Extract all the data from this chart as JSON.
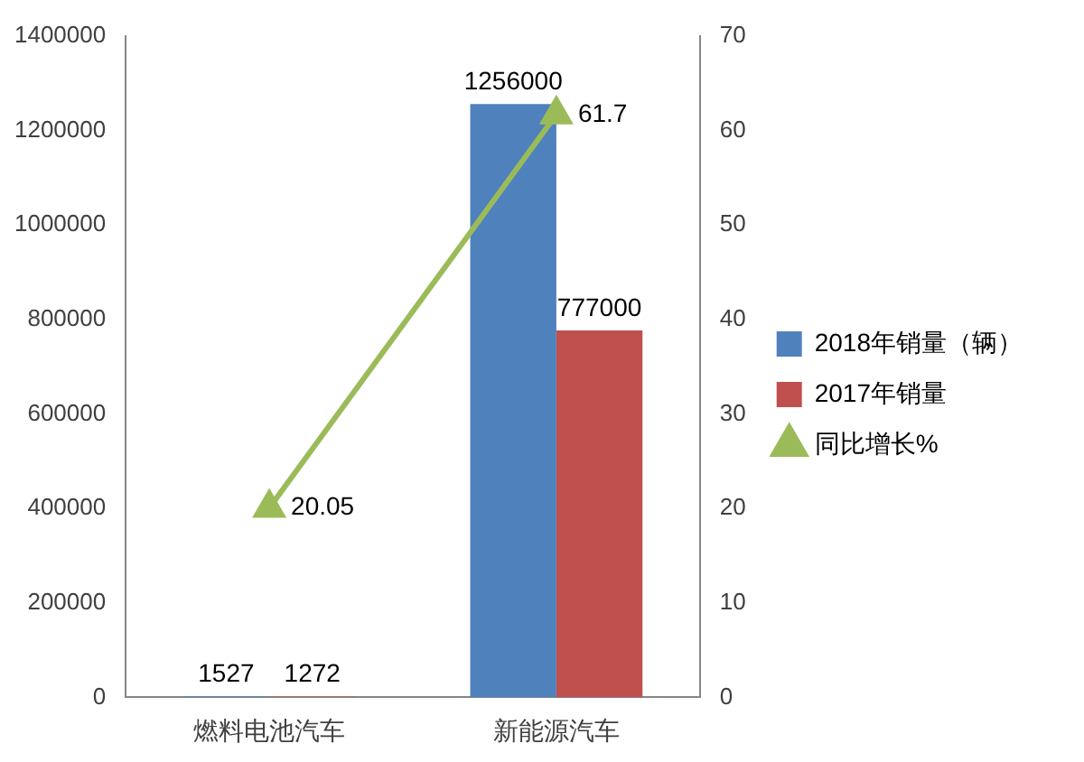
{
  "chart_data": {
    "type": "bar",
    "categories": [
      "燃料电池汽车",
      "新能源汽车"
    ],
    "series": [
      {
        "name": "2018年销量（辆）",
        "color": "#4f81bd",
        "values": [
          1527,
          1256000
        ]
      },
      {
        "name": "2017年销量",
        "color": "#c0504d",
        "values": [
          1272,
          777000
        ]
      },
      {
        "name": "同比增长%",
        "type": "line",
        "axis": "y2",
        "color": "#9bbb59",
        "values": [
          20.05,
          61.7
        ],
        "marker": "triangle"
      }
    ],
    "ylim": [
      0,
      1400000
    ],
    "yticks": [
      0,
      200000,
      400000,
      600000,
      800000,
      1000000,
      1200000,
      1400000
    ],
    "y2lim": [
      0,
      70
    ],
    "y2ticks": [
      0,
      10,
      20,
      30,
      40,
      50,
      60,
      70
    ],
    "grid": false,
    "legend": "right",
    "data_labels": true
  }
}
